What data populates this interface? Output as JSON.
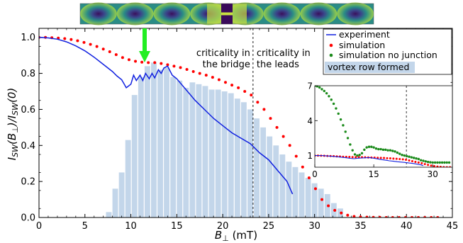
{
  "chart_data": [
    {
      "type": "line",
      "xlim": [
        0,
        45
      ],
      "ylim": [
        0,
        1.05
      ],
      "xticks": [
        "0",
        "5",
        "10",
        "15",
        "20",
        "25",
        "30",
        "35",
        "40",
        "45"
      ],
      "yticks": [
        "0.0",
        "0.2",
        "0.4",
        "0.6",
        "0.8",
        "1.0"
      ],
      "xlabel_main": "B",
      "xlabel_sub": "⊥",
      "xlabel_unit": " (mT)",
      "ylabel_parts": [
        "I",
        "SW",
        "(B",
        "⊥",
        ")/I",
        "SW",
        "(0)"
      ],
      "critical_line_x": 23.3,
      "annotations": {
        "left_line1": "criticality in",
        "left_line2": "the bridge",
        "right_line1": "criticality in",
        "right_line2": "the leads"
      },
      "arrow_x": 11.5,
      "arrow_color": "#22ee22",
      "legend": {
        "experiment": "experiment",
        "simulation": "simulation",
        "simulation_no_junction": "simulation no junction",
        "vortex_row": "vortex row formed"
      },
      "series": [
        {
          "name": "experiment",
          "color": "#1020e0",
          "x": [
            0,
            1,
            2,
            3,
            4,
            5,
            6,
            7,
            8,
            8.5,
            9,
            9.5,
            10,
            10.3,
            10.6,
            11,
            11.3,
            11.6,
            12,
            12.3,
            12.6,
            13,
            13.3,
            13.6,
            14,
            14.5,
            15,
            16,
            17,
            18,
            19,
            20,
            21,
            22,
            23,
            24,
            25,
            26,
            27,
            27.6
          ],
          "y": [
            1.0,
            0.997,
            0.99,
            0.975,
            0.953,
            0.925,
            0.89,
            0.85,
            0.81,
            0.785,
            0.765,
            0.72,
            0.74,
            0.79,
            0.76,
            0.79,
            0.76,
            0.8,
            0.77,
            0.8,
            0.775,
            0.82,
            0.8,
            0.83,
            0.84,
            0.79,
            0.77,
            0.71,
            0.65,
            0.6,
            0.55,
            0.51,
            0.47,
            0.44,
            0.41,
            0.36,
            0.32,
            0.26,
            0.2,
            0.13
          ]
        },
        {
          "name": "simulation",
          "color": "#ff0000",
          "x": [
            0,
            0.7,
            1.4,
            2.1,
            2.8,
            3.5,
            4.2,
            4.9,
            5.6,
            6.3,
            7.0,
            7.7,
            8.4,
            9.1,
            9.8,
            10.5,
            11.2,
            11.9,
            12.6,
            13.3,
            14.0,
            14.7,
            15.4,
            16.1,
            16.8,
            17.5,
            18.2,
            18.9,
            19.6,
            20.3,
            21.0,
            21.7,
            22.4,
            23.1,
            23.8,
            24.5,
            25.2,
            25.9,
            26.6,
            27.3,
            28.0,
            28.7,
            29.4,
            30.1,
            30.8,
            31.5,
            32.2,
            32.9,
            33.6,
            34.3,
            35.0,
            35.7,
            36.4,
            37.1,
            37.8,
            38.5,
            39.2,
            39.9,
            40.6,
            41.3,
            42.0,
            42.7,
            43.4
          ],
          "y": [
            1.0,
            1.0,
            0.998,
            0.996,
            0.993,
            0.988,
            0.981,
            0.972,
            0.961,
            0.949,
            0.935,
            0.92,
            0.904,
            0.888,
            0.876,
            0.867,
            0.862,
            0.86,
            0.86,
            0.855,
            0.848,
            0.84,
            0.832,
            0.822,
            0.81,
            0.8,
            0.79,
            0.778,
            0.765,
            0.75,
            0.735,
            0.72,
            0.7,
            0.68,
            0.64,
            0.6,
            0.55,
            0.5,
            0.45,
            0.4,
            0.34,
            0.28,
            0.22,
            0.16,
            0.1,
            0.065,
            0.04,
            0.025,
            0.013,
            0.006,
            0.003,
            0.002,
            0.001,
            0.001,
            0.0,
            0.0,
            0.0,
            0.0,
            0.0,
            0.0,
            0.0,
            0.0,
            0.0
          ]
        },
        {
          "name": "vortex row formed",
          "type": "bar",
          "color": "#c3d6ea",
          "bar_width": 0.7,
          "x": [
            7.6,
            8.3,
            9.0,
            9.7,
            10.4,
            11.1,
            11.8,
            12.5,
            13.2,
            13.9,
            14.6,
            15.3,
            16.0,
            16.7,
            17.4,
            18.1,
            18.8,
            19.5,
            20.2,
            20.9,
            21.6,
            22.3,
            23.0,
            23.7,
            24.4,
            25.1,
            25.8,
            26.5,
            27.2,
            27.9,
            28.6,
            29.3,
            30.0,
            30.7,
            31.4,
            32.1,
            32.8
          ],
          "y": [
            0.03,
            0.16,
            0.25,
            0.43,
            0.68,
            0.78,
            0.84,
            0.86,
            0.82,
            0.83,
            0.78,
            0.76,
            0.72,
            0.75,
            0.74,
            0.73,
            0.71,
            0.71,
            0.7,
            0.69,
            0.66,
            0.64,
            0.6,
            0.55,
            0.5,
            0.45,
            0.4,
            0.35,
            0.31,
            0.28,
            0.25,
            0.22,
            0.19,
            0.16,
            0.13,
            0.08,
            0.05
          ]
        }
      ]
    },
    {
      "type": "scatter",
      "role": "inset",
      "xlim": [
        0,
        35
      ],
      "ylim": [
        0,
        7
      ],
      "xticks": [
        "0",
        "15",
        "30"
      ],
      "yticks": [
        "1",
        "4",
        "7"
      ],
      "critical_line_x": 23.3,
      "series": [
        {
          "name": "simulation no junction",
          "color": "#1a8a1a",
          "x": [
            0,
            0.6,
            1.2,
            1.8,
            2.4,
            3.0,
            3.6,
            4.2,
            4.8,
            5.4,
            6.0,
            6.6,
            7.2,
            7.8,
            8.4,
            9.0,
            9.6,
            10.2,
            10.8,
            11.4,
            12.0,
            12.6,
            13.2,
            13.8,
            14.4,
            15.0,
            15.6,
            16.2,
            16.8,
            17.4,
            18.0,
            18.6,
            19.2,
            19.8,
            20.4,
            21.0,
            21.6,
            22.2,
            22.8,
            23.4,
            24.0,
            24.6,
            25.2,
            25.8,
            26.4,
            27.0,
            27.6,
            28.2,
            28.8,
            29.4,
            30.0,
            30.6,
            31.2,
            31.8,
            32.4,
            33.0,
            33.6,
            34.2
          ],
          "y": [
            7.0,
            6.95,
            6.85,
            6.7,
            6.55,
            6.35,
            6.1,
            5.8,
            5.45,
            5.05,
            4.6,
            4.1,
            3.6,
            3.05,
            2.5,
            1.95,
            1.45,
            1.1,
            1.0,
            1.05,
            1.2,
            1.5,
            1.7,
            1.75,
            1.75,
            1.7,
            1.6,
            1.55,
            1.55,
            1.5,
            1.5,
            1.45,
            1.45,
            1.4,
            1.35,
            1.25,
            1.15,
            1.05,
            1.0,
            0.95,
            0.9,
            0.85,
            0.8,
            0.75,
            0.7,
            0.6,
            0.55,
            0.5,
            0.45,
            0.42,
            0.4,
            0.4,
            0.4,
            0.4,
            0.4,
            0.4,
            0.4,
            0.4
          ]
        },
        {
          "name": "simulation",
          "color": "#ff0000",
          "x": [
            0,
            0.8,
            1.6,
            2.4,
            3.2,
            4.0,
            4.8,
            5.6,
            6.4,
            7.2,
            8.0,
            8.8,
            9.6,
            10.4,
            11.2,
            12.0,
            12.8,
            13.6,
            14.4,
            15.2,
            16.0,
            16.8,
            17.6,
            18.4,
            19.2,
            20.0,
            20.8,
            21.6,
            22.4,
            23.2,
            24.0,
            24.8,
            25.6,
            26.4,
            27.2,
            28.0,
            28.8,
            29.6,
            30.4,
            31.2,
            32.0,
            32.8,
            33.6,
            34.4
          ],
          "y": [
            1.0,
            1.0,
            0.99,
            0.98,
            0.97,
            0.96,
            0.95,
            0.93,
            0.92,
            0.9,
            0.89,
            0.88,
            0.87,
            0.86,
            0.86,
            0.86,
            0.85,
            0.84,
            0.83,
            0.82,
            0.81,
            0.8,
            0.79,
            0.77,
            0.76,
            0.74,
            0.72,
            0.7,
            0.68,
            0.64,
            0.58,
            0.52,
            0.46,
            0.4,
            0.34,
            0.27,
            0.2,
            0.14,
            0.09,
            0.05,
            0.03,
            0.01,
            0.0,
            0.0
          ]
        },
        {
          "name": "experiment",
          "color": "#1020e0",
          "x": [
            0,
            2,
            4,
            6,
            8,
            9,
            10,
            11,
            12,
            13,
            14,
            15,
            16,
            17,
            18,
            19,
            20,
            21,
            22,
            23,
            24,
            25,
            26,
            27,
            27.6
          ],
          "y": [
            1.0,
            0.99,
            0.95,
            0.89,
            0.81,
            0.76,
            0.73,
            0.77,
            0.79,
            0.81,
            0.83,
            0.77,
            0.71,
            0.65,
            0.6,
            0.55,
            0.51,
            0.47,
            0.44,
            0.41,
            0.36,
            0.32,
            0.26,
            0.2,
            0.13
          ]
        }
      ]
    }
  ],
  "colorstrip": {
    "period_count": 8,
    "background": "#2a8c86",
    "vortex_color": "#3a0a5a",
    "highlight_color": "#c8e040",
    "junction_color": "#3a0a5a"
  }
}
